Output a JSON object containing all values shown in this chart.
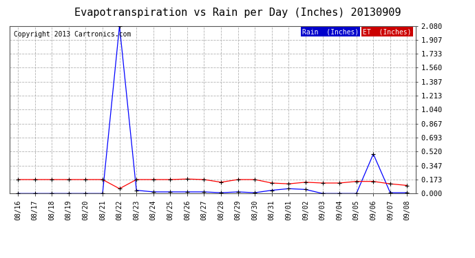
{
  "title": "Evapotranspiration vs Rain per Day (Inches) 20130909",
  "copyright": "Copyright 2013 Cartronics.com",
  "x_labels": [
    "08/16",
    "08/17",
    "08/18",
    "08/19",
    "08/20",
    "08/21",
    "08/22",
    "08/23",
    "08/24",
    "08/25",
    "08/26",
    "08/27",
    "08/28",
    "08/29",
    "08/30",
    "08/31",
    "09/01",
    "09/02",
    "09/03",
    "09/04",
    "09/05",
    "09/06",
    "09/07",
    "09/08"
  ],
  "rain_values": [
    0.0,
    0.0,
    0.0,
    0.0,
    0.0,
    0.0,
    2.08,
    0.04,
    0.02,
    0.02,
    0.02,
    0.02,
    0.01,
    0.02,
    0.01,
    0.04,
    0.06,
    0.05,
    0.0,
    0.0,
    0.0,
    0.49,
    0.01,
    0.01
  ],
  "et_values": [
    0.173,
    0.173,
    0.173,
    0.173,
    0.173,
    0.173,
    0.06,
    0.173,
    0.173,
    0.173,
    0.18,
    0.173,
    0.14,
    0.173,
    0.173,
    0.13,
    0.12,
    0.14,
    0.13,
    0.13,
    0.15,
    0.15,
    0.12,
    0.1
  ],
  "rain_color": "#0000ff",
  "et_color": "#ff0000",
  "background_color": "#ffffff",
  "grid_color": "#aaaaaa",
  "y_ticks": [
    0.0,
    0.173,
    0.347,
    0.52,
    0.693,
    0.867,
    1.04,
    1.213,
    1.387,
    1.56,
    1.733,
    1.907,
    2.08
  ],
  "legend_rain_label": "Rain  (Inches)",
  "legend_et_label": "ET  (Inches)",
  "legend_rain_bg": "#0000cc",
  "legend_et_bg": "#cc0000",
  "ymax": 2.08,
  "title_fontsize": 11,
  "copyright_fontsize": 7,
  "tick_fontsize": 7,
  "ytick_fontsize": 7.5
}
